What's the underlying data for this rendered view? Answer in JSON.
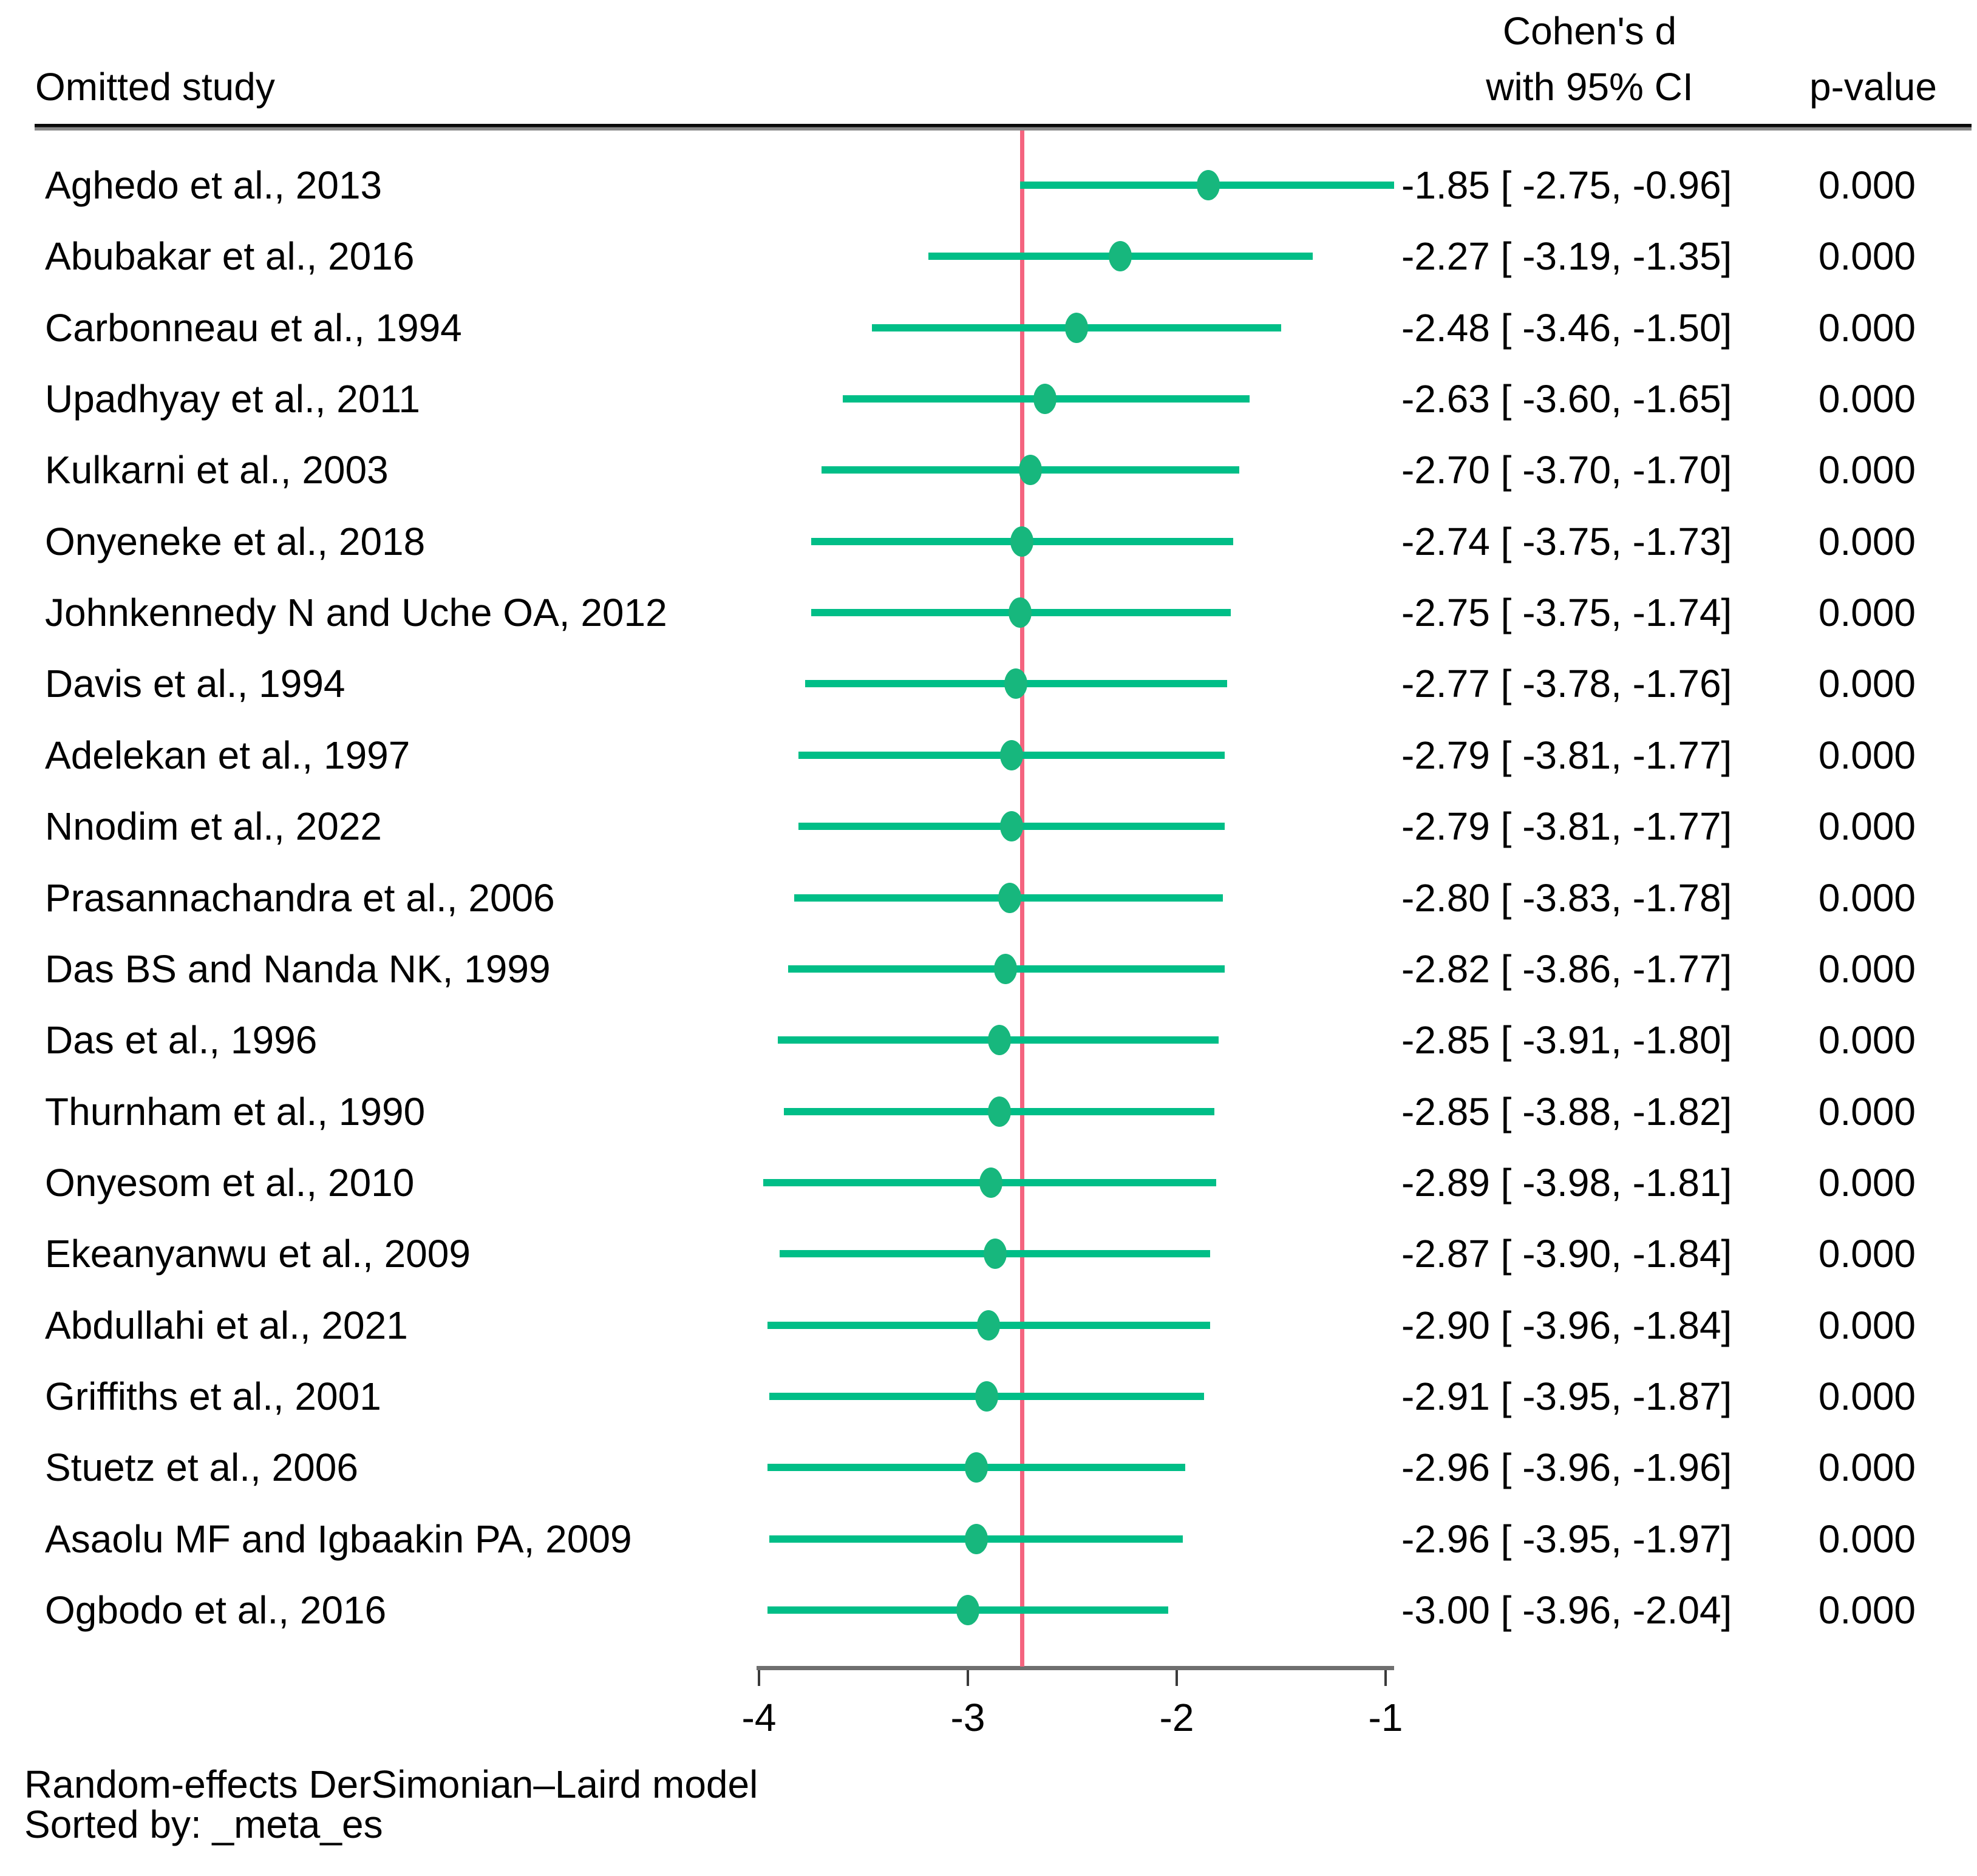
{
  "header": {
    "omitted_study": "Omitted study",
    "effect_line1": "Cohen's d",
    "effect_line2": "with 95% CI",
    "p_value": "p-value"
  },
  "rows": [
    {
      "study": "Aghedo et al., 2013",
      "es": -1.85,
      "lo": -2.75,
      "hi": -0.96,
      "ci_text": "-1.85 [ -2.75, -0.96]",
      "p": "0.000"
    },
    {
      "study": "Abubakar et al., 2016",
      "es": -2.27,
      "lo": -3.19,
      "hi": -1.35,
      "ci_text": "-2.27 [ -3.19, -1.35]",
      "p": "0.000"
    },
    {
      "study": "Carbonneau et al., 1994",
      "es": -2.48,
      "lo": -3.46,
      "hi": -1.5,
      "ci_text": "-2.48 [ -3.46, -1.50]",
      "p": "0.000"
    },
    {
      "study": "Upadhyay et al., 2011",
      "es": -2.63,
      "lo": -3.6,
      "hi": -1.65,
      "ci_text": "-2.63 [ -3.60, -1.65]",
      "p": "0.000"
    },
    {
      "study": "Kulkarni et al., 2003",
      "es": -2.7,
      "lo": -3.7,
      "hi": -1.7,
      "ci_text": "-2.70 [ -3.70, -1.70]",
      "p": "0.000"
    },
    {
      "study": "Onyeneke et al., 2018",
      "es": -2.74,
      "lo": -3.75,
      "hi": -1.73,
      "ci_text": "-2.74 [ -3.75, -1.73]",
      "p": "0.000"
    },
    {
      "study": "Johnkennedy N and Uche OA, 2012",
      "es": -2.75,
      "lo": -3.75,
      "hi": -1.74,
      "ci_text": "-2.75 [ -3.75, -1.74]",
      "p": "0.000"
    },
    {
      "study": "Davis et al., 1994",
      "es": -2.77,
      "lo": -3.78,
      "hi": -1.76,
      "ci_text": "-2.77 [ -3.78, -1.76]",
      "p": "0.000"
    },
    {
      "study": "Adelekan et al., 1997",
      "es": -2.79,
      "lo": -3.81,
      "hi": -1.77,
      "ci_text": "-2.79 [ -3.81, -1.77]",
      "p": "0.000"
    },
    {
      "study": "Nnodim et al., 2022",
      "es": -2.79,
      "lo": -3.81,
      "hi": -1.77,
      "ci_text": "-2.79 [ -3.81, -1.77]",
      "p": "0.000"
    },
    {
      "study": "Prasannachandra et al., 2006",
      "es": -2.8,
      "lo": -3.83,
      "hi": -1.78,
      "ci_text": "-2.80 [ -3.83, -1.78]",
      "p": "0.000"
    },
    {
      "study": "Das BS and Nanda NK, 1999",
      "es": -2.82,
      "lo": -3.86,
      "hi": -1.77,
      "ci_text": "-2.82 [ -3.86, -1.77]",
      "p": "0.000"
    },
    {
      "study": "Das et al., 1996",
      "es": -2.85,
      "lo": -3.91,
      "hi": -1.8,
      "ci_text": "-2.85 [ -3.91, -1.80]",
      "p": "0.000"
    },
    {
      "study": "Thurnham et al., 1990",
      "es": -2.85,
      "lo": -3.88,
      "hi": -1.82,
      "ci_text": "-2.85 [ -3.88, -1.82]",
      "p": "0.000"
    },
    {
      "study": "Onyesom et al., 2010",
      "es": -2.89,
      "lo": -3.98,
      "hi": -1.81,
      "ci_text": "-2.89 [ -3.98, -1.81]",
      "p": "0.000"
    },
    {
      "study": "Ekeanyanwu et al., 2009",
      "es": -2.87,
      "lo": -3.9,
      "hi": -1.84,
      "ci_text": "-2.87 [ -3.90, -1.84]",
      "p": "0.000"
    },
    {
      "study": "Abdullahi et al., 2021",
      "es": -2.9,
      "lo": -3.96,
      "hi": -1.84,
      "ci_text": "-2.90 [ -3.96, -1.84]",
      "p": "0.000"
    },
    {
      "study": "Griffiths et al., 2001",
      "es": -2.91,
      "lo": -3.95,
      "hi": -1.87,
      "ci_text": "-2.91 [ -3.95, -1.87]",
      "p": "0.000"
    },
    {
      "study": "Stuetz et al., 2006",
      "es": -2.96,
      "lo": -3.96,
      "hi": -1.96,
      "ci_text": "-2.96 [ -3.96, -1.96]",
      "p": "0.000"
    },
    {
      "study": "Asaolu MF and Igbaakin PA, 2009",
      "es": -2.96,
      "lo": -3.95,
      "hi": -1.97,
      "ci_text": "-2.96 [ -3.95, -1.97]",
      "p": "0.000"
    },
    {
      "study": "Ogbodo et al., 2016",
      "es": -3.0,
      "lo": -3.96,
      "hi": -2.04,
      "ci_text": "-3.00 [ -3.96, -2.04]",
      "p": "0.000"
    }
  ],
  "axis": {
    "tick_values": [
      -4,
      -3,
      -2,
      -1
    ],
    "tick_labels": [
      "-4",
      "-3",
      "-2",
      "-1"
    ]
  },
  "ref_line": {
    "value": -2.74
  },
  "footer": {
    "line1": "Random-effects DerSimonian–Laird model",
    "line2": "Sorted by: _meta_es"
  },
  "colors": {
    "ci_line": "#00BE87",
    "marker": "#17B77D",
    "ref_line": "#F4647F",
    "axis_line": "#6F6F6F",
    "text": "#000000"
  },
  "chart_data": {
    "type": "scatter",
    "subtype": "forest-plot-leave-one-out",
    "title": "",
    "xlabel": "Cohen's d",
    "ylabel": "Omitted study",
    "xlim": [
      -4,
      -1
    ],
    "x_ticks": [
      -4,
      -3,
      -2,
      -1
    ],
    "reference_line_x": -2.74,
    "grid": false,
    "legend": false,
    "categories": [
      "Aghedo et al., 2013",
      "Abubakar et al., 2016",
      "Carbonneau et al., 1994",
      "Upadhyay et al., 2011",
      "Kulkarni et al., 2003",
      "Onyeneke et al., 2018",
      "Johnkennedy N and Uche OA, 2012",
      "Davis et al., 1994",
      "Adelekan et al., 1997",
      "Nnodim et al., 2022",
      "Prasannachandra et al., 2006",
      "Das BS and Nanda NK, 1999",
      "Das et al., 1996",
      "Thurnham et al., 1990",
      "Onyesom et al., 2010",
      "Ekeanyanwu et al., 2009",
      "Abdullahi et al., 2021",
      "Griffiths et al., 2001",
      "Stuetz et al., 2006",
      "Asaolu MF and Igbaakin PA, 2009",
      "Ogbodo et al., 2016"
    ],
    "series": [
      {
        "name": "Cohen's d",
        "values": [
          -1.85,
          -2.27,
          -2.48,
          -2.63,
          -2.7,
          -2.74,
          -2.75,
          -2.77,
          -2.79,
          -2.79,
          -2.8,
          -2.82,
          -2.85,
          -2.85,
          -2.89,
          -2.87,
          -2.9,
          -2.91,
          -2.96,
          -2.96,
          -3.0
        ]
      },
      {
        "name": "95% CI lower",
        "values": [
          -2.75,
          -3.19,
          -3.46,
          -3.6,
          -3.7,
          -3.75,
          -3.75,
          -3.78,
          -3.81,
          -3.81,
          -3.83,
          -3.86,
          -3.91,
          -3.88,
          -3.98,
          -3.9,
          -3.96,
          -3.95,
          -3.96,
          -3.95,
          -3.96
        ]
      },
      {
        "name": "95% CI upper",
        "values": [
          -0.96,
          -1.35,
          -1.5,
          -1.65,
          -1.7,
          -1.73,
          -1.74,
          -1.76,
          -1.77,
          -1.77,
          -1.78,
          -1.77,
          -1.8,
          -1.82,
          -1.81,
          -1.84,
          -1.84,
          -1.87,
          -1.96,
          -1.97,
          -2.04
        ]
      },
      {
        "name": "p-value",
        "values": [
          "0.000",
          "0.000",
          "0.000",
          "0.000",
          "0.000",
          "0.000",
          "0.000",
          "0.000",
          "0.000",
          "0.000",
          "0.000",
          "0.000",
          "0.000",
          "0.000",
          "0.000",
          "0.000",
          "0.000",
          "0.000",
          "0.000",
          "0.000",
          "0.000"
        ]
      }
    ]
  }
}
